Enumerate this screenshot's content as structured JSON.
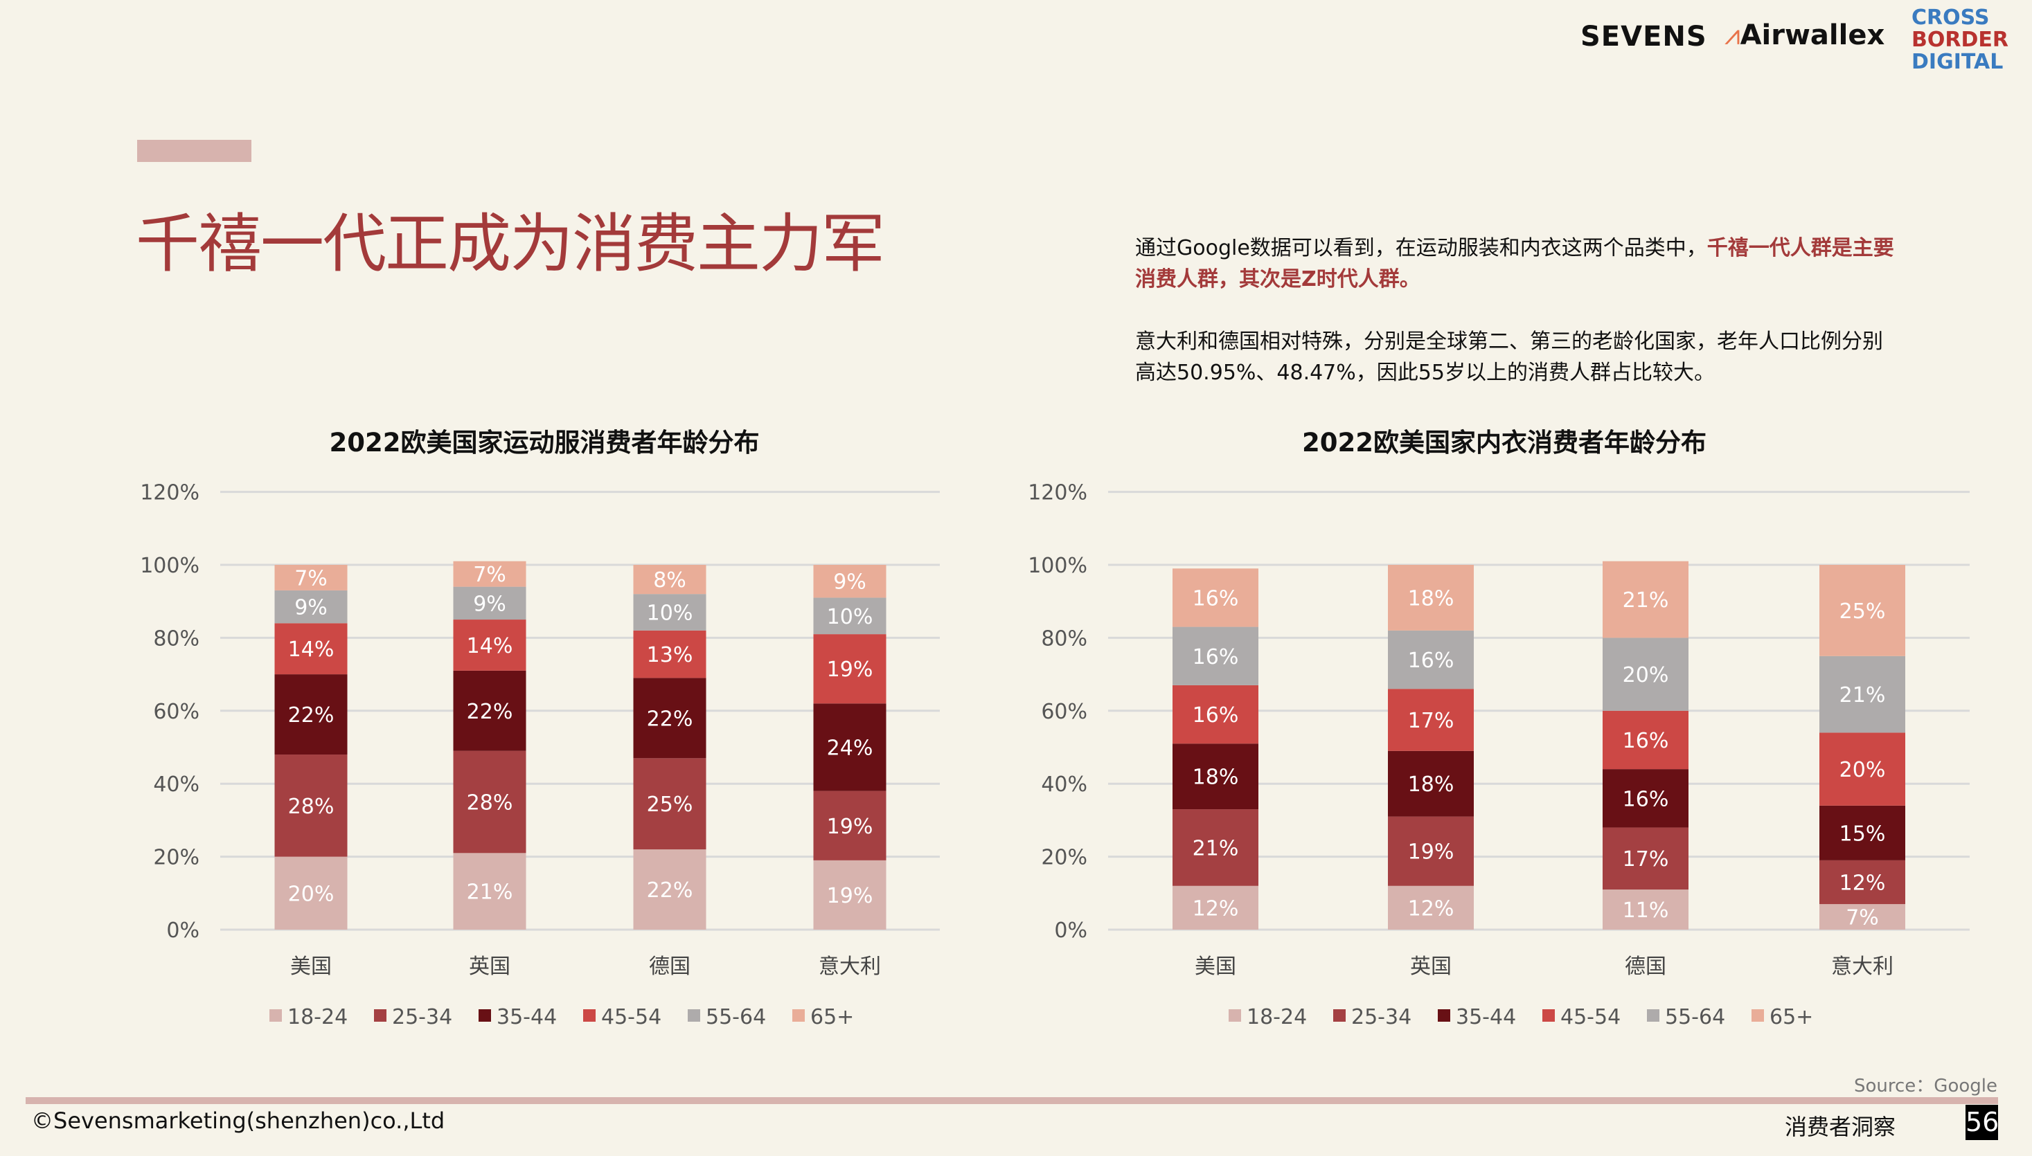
{
  "logos": {
    "sevens": "SEVENS",
    "airwallex": "Airwallex",
    "cross_border_digital": [
      "CROSS",
      "BORDER",
      "DIGITAL"
    ]
  },
  "title": "千禧一代正成为消费主力军",
  "description": {
    "p1_normal": "通过Google数据可以看到，在运动服装和内衣这两个品类中，",
    "p1_highlight": "千禧一代人群是主要消费人群，其次是Z时代人群。",
    "p2": "意大利和德国相对特殊，分别是全球第二、第三的老龄化国家，老年人口比例分别高达50.95%、48.47%，因此55岁以上的消费人群占比较大。"
  },
  "colors": {
    "18-24": "#d7b3ae",
    "25-34": "#a44042",
    "35-44": "#681015",
    "45-54": "#cc4845",
    "55-64": "#aeabab",
    "65+": "#e9ad98",
    "title": "#a33a3a",
    "background": "#f6f3e9"
  },
  "chart_data": [
    {
      "type": "bar",
      "stacked": true,
      "title": "2022欧美国家运动服消费者年龄分布",
      "categories": [
        "美国",
        "英国",
        "德国",
        "意大利"
      ],
      "ylim": [
        0,
        120
      ],
      "yticks": [
        "0%",
        "20%",
        "40%",
        "60%",
        "80%",
        "100%",
        "120%"
      ],
      "grid": true,
      "legend": "bottom",
      "series": [
        {
          "name": "18-24",
          "values": [
            20,
            21,
            22,
            19
          ]
        },
        {
          "name": "25-34",
          "values": [
            28,
            28,
            25,
            19
          ]
        },
        {
          "name": "35-44",
          "values": [
            22,
            22,
            22,
            24
          ]
        },
        {
          "name": "45-54",
          "values": [
            14,
            14,
            13,
            19
          ]
        },
        {
          "name": "55-64",
          "values": [
            9,
            9,
            10,
            10
          ]
        },
        {
          "name": "65+",
          "values": [
            7,
            7,
            8,
            9
          ]
        }
      ]
    },
    {
      "type": "bar",
      "stacked": true,
      "title": "2022欧美国家内衣消费者年龄分布",
      "categories": [
        "美国",
        "英国",
        "德国",
        "意大利"
      ],
      "ylim": [
        0,
        120
      ],
      "yticks": [
        "0%",
        "20%",
        "40%",
        "60%",
        "80%",
        "100%",
        "120%"
      ],
      "grid": true,
      "legend": "bottom",
      "series": [
        {
          "name": "18-24",
          "values": [
            12,
            12,
            11,
            7
          ]
        },
        {
          "name": "25-34",
          "values": [
            21,
            19,
            17,
            12
          ]
        },
        {
          "name": "35-44",
          "values": [
            18,
            18,
            16,
            15
          ]
        },
        {
          "name": "45-54",
          "values": [
            16,
            17,
            16,
            20
          ]
        },
        {
          "name": "55-64",
          "values": [
            16,
            16,
            20,
            21
          ]
        },
        {
          "name": "65+",
          "values": [
            16,
            18,
            21,
            25
          ]
        }
      ]
    }
  ],
  "footer": {
    "source": "Source：Google",
    "copyright": "©Sevensmarketing(shenzhen)co.,Ltd",
    "section": "消费者洞察",
    "page_number": "56"
  }
}
